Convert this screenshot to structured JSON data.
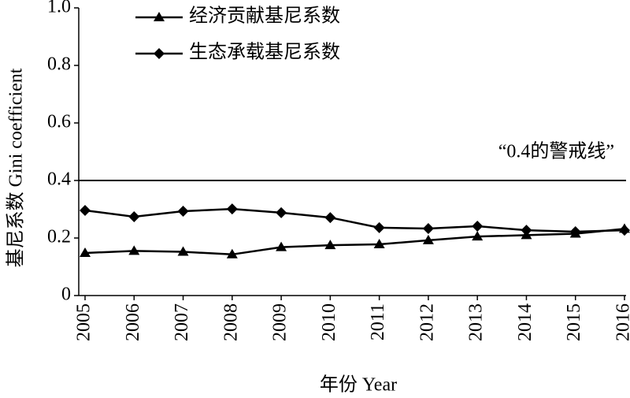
{
  "chart_data": {
    "type": "line",
    "x_label": "年份 Year",
    "y_label": "基尼系数 Gini coefficient",
    "categories": [
      "2005",
      "2006",
      "2007",
      "2008",
      "2009",
      "2010",
      "2011",
      "2012",
      "2013",
      "2014",
      "2015",
      "2016"
    ],
    "series": [
      {
        "name": "经济贡献基尼系数",
        "color": "#000000",
        "marker": "triangle",
        "values": [
          0.148,
          0.155,
          0.152,
          0.143,
          0.168,
          0.175,
          0.178,
          0.192,
          0.205,
          0.21,
          0.215,
          0.232
        ]
      },
      {
        "name": "生态承载基尼系数",
        "color": "#000000",
        "marker": "diamond",
        "values": [
          0.296,
          0.274,
          0.293,
          0.301,
          0.288,
          0.271,
          0.236,
          0.233,
          0.241,
          0.227,
          0.222,
          0.227
        ]
      }
    ],
    "ylim": [
      0,
      1.0
    ],
    "yticks": [
      0,
      0.2,
      0.4,
      0.6,
      {
        "value": 0.8,
        "label": "0.8"
      },
      {
        "value": 1.0,
        "label": "1.0"
      }
    ],
    "reference_line": {
      "value": 0.4,
      "label": "“0.4的警戒线”"
    },
    "legend": "top-left"
  }
}
